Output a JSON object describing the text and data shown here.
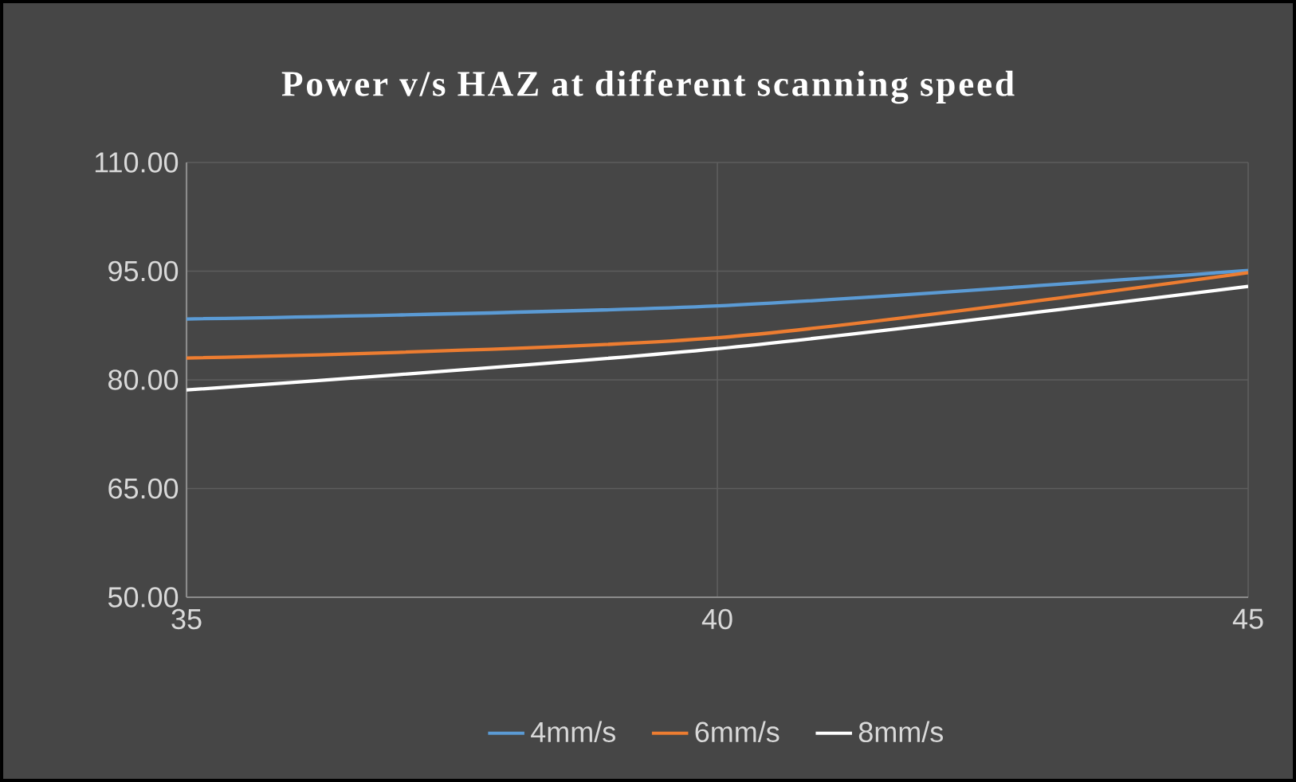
{
  "chart_data": {
    "type": "line",
    "title": "Power v/s HAZ at different scanning speed",
    "x": [
      35,
      40,
      45
    ],
    "series": [
      {
        "name": "4mm/s",
        "color": "#5b9bd5",
        "values": [
          88.4,
          90.2,
          95.1
        ]
      },
      {
        "name": "6mm/s",
        "color": "#ed7d31",
        "values": [
          83.0,
          85.8,
          94.8
        ]
      },
      {
        "name": "8mm/s",
        "color": "#ffffff",
        "values": [
          78.6,
          84.3,
          92.9
        ]
      }
    ],
    "xlim": [
      35,
      45
    ],
    "xticks": [
      35,
      40,
      45
    ],
    "ylim": [
      50,
      110
    ],
    "yticks": [
      {
        "value": 50,
        "label": "50.00"
      },
      {
        "value": 65,
        "label": "65.00"
      },
      {
        "value": 80,
        "label": "80.00"
      },
      {
        "value": 95,
        "label": "95.00"
      },
      {
        "value": 110,
        "label": "110.00"
      }
    ],
    "grid": true,
    "legend": "bottom"
  }
}
